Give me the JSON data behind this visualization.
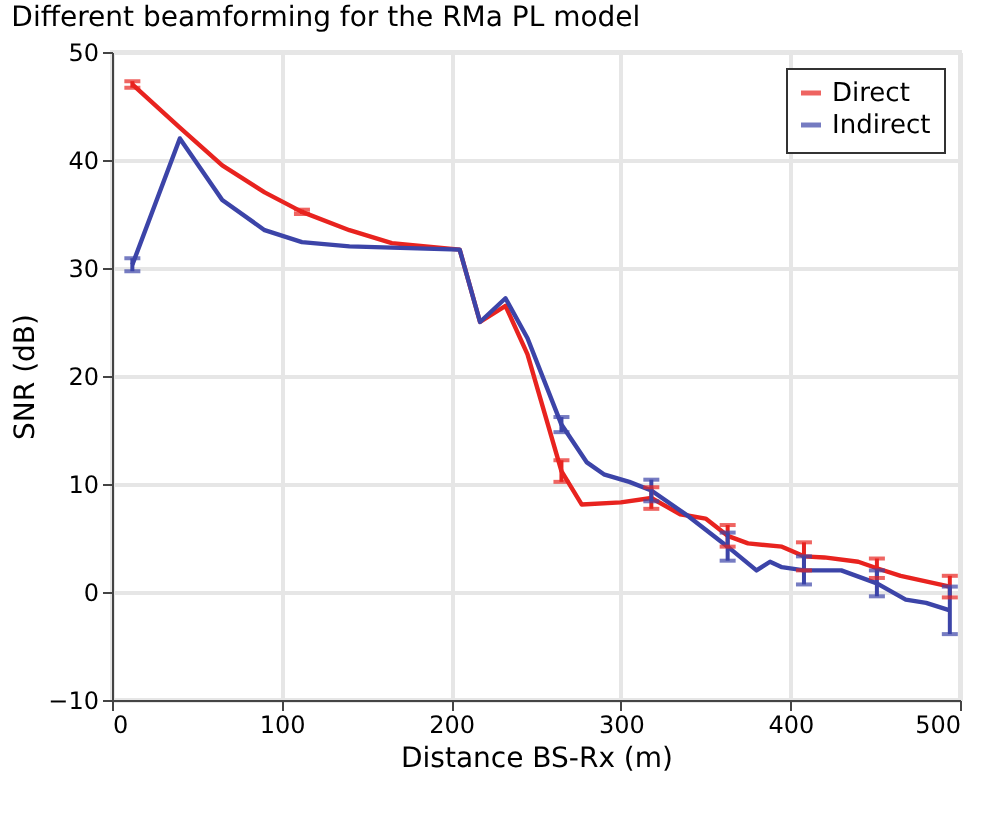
{
  "chart_data": {
    "type": "line",
    "title": "Different beamforming for the RMa PL model",
    "xlabel": "Distance BS-Rx (m)",
    "ylabel": "SNR (dB)",
    "xlim": [
      0,
      500
    ],
    "xticks": [
      0,
      100,
      200,
      300,
      400,
      500
    ],
    "ylim": [
      -10,
      50
    ],
    "yticks": [
      -10,
      0,
      10,
      20,
      30,
      40,
      50
    ],
    "grid": true,
    "legend": "top right",
    "marker": "none",
    "line_style": "solid",
    "series": [
      {
        "name": "Direct",
        "color": "#e8231f",
        "x": [
          12,
          40,
          65,
          90,
          112,
          140,
          165,
          205,
          217,
          232,
          245,
          265,
          277,
          300,
          318,
          335,
          350,
          363,
          375,
          395,
          408,
          420,
          440,
          451,
          465,
          494
        ],
        "values": [
          47,
          43,
          39.5,
          37,
          35.2,
          33.5,
          32.3,
          31.7,
          25,
          26.5,
          22,
          11.2,
          8.1,
          8.3,
          8.7,
          7.2,
          6.8,
          5.2,
          4.5,
          4.2,
          3.3,
          3.2,
          2.8,
          2.2,
          1.5,
          0.5
        ],
        "errors": [
          0.3,
          null,
          null,
          null,
          0.2,
          null,
          null,
          null,
          null,
          null,
          null,
          1,
          null,
          null,
          1,
          null,
          null,
          1,
          null,
          null,
          1.3,
          null,
          null,
          0.9,
          null,
          1
        ]
      },
      {
        "name": "Indirect",
        "color": "#3c44a8",
        "x": [
          12,
          40,
          65,
          90,
          112,
          140,
          205,
          217,
          232,
          245,
          265,
          280,
          290,
          305,
          318,
          340,
          363,
          380,
          388,
          395,
          408,
          430,
          451,
          468,
          480,
          494
        ],
        "values": [
          30.3,
          42,
          36.3,
          33.5,
          32.4,
          32,
          31.7,
          25,
          27.2,
          23.5,
          15.5,
          12,
          10.9,
          10.2,
          9.4,
          7,
          4.2,
          2,
          2.8,
          2.3,
          2,
          2,
          0.8,
          -0.7,
          -1,
          -1.7
        ],
        "errors": [
          0.6,
          null,
          null,
          null,
          null,
          null,
          null,
          null,
          null,
          null,
          0.7,
          null,
          null,
          null,
          1,
          null,
          1.3,
          null,
          null,
          null,
          1.3,
          null,
          1.2,
          null,
          null,
          2.2
        ]
      }
    ]
  }
}
